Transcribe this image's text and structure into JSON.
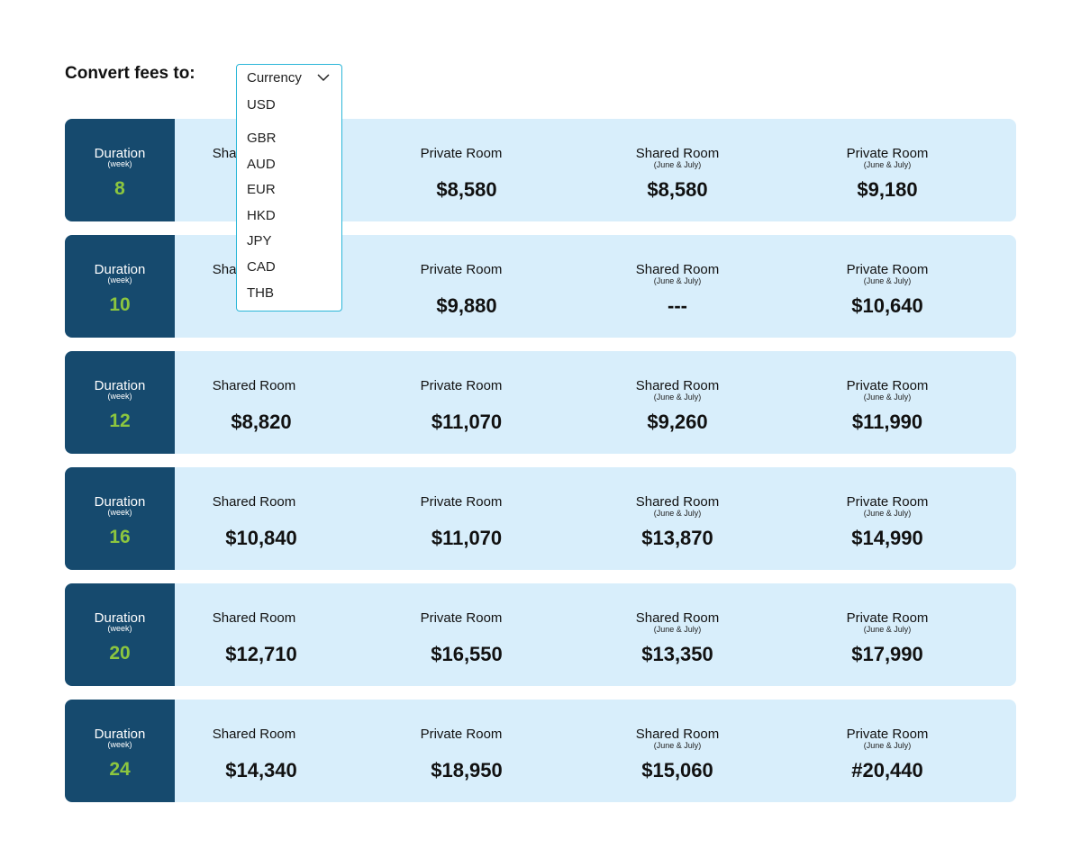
{
  "header": {
    "convert_label": "Convert fees to:"
  },
  "currency": {
    "selected": "Currency",
    "options": [
      "USD",
      "GBR",
      "AUD",
      "EUR",
      "HKD",
      "JPY",
      "CAD",
      "THB"
    ]
  },
  "table": {
    "duration_label": "Duration",
    "duration_unit": "(week)",
    "column_titles": [
      "Shared Room",
      "Private Room",
      "Shared Room",
      "Private Room"
    ],
    "column_subtitles": [
      "",
      "",
      "(June & July)",
      "(June & July)"
    ],
    "rows": [
      {
        "weeks": "8",
        "prices": [
          "$",
          "$8,580",
          "$8,580",
          "$9,180"
        ]
      },
      {
        "weeks": "10",
        "prices": [
          "",
          "$9,880",
          "---",
          "$10,640"
        ]
      },
      {
        "weeks": "12",
        "prices": [
          "$8,820",
          "$11,070",
          "$9,260",
          "$11,990"
        ]
      },
      {
        "weeks": "16",
        "prices": [
          "$10,840",
          "$11,070",
          "$13,870",
          "$14,990"
        ]
      },
      {
        "weeks": "20",
        "prices": [
          "$12,710",
          "$16,550",
          "$13,350",
          "$17,990"
        ]
      },
      {
        "weeks": "24",
        "prices": [
          "$14,340",
          "$18,950",
          "$15,060",
          "#20,440"
        ]
      }
    ]
  }
}
